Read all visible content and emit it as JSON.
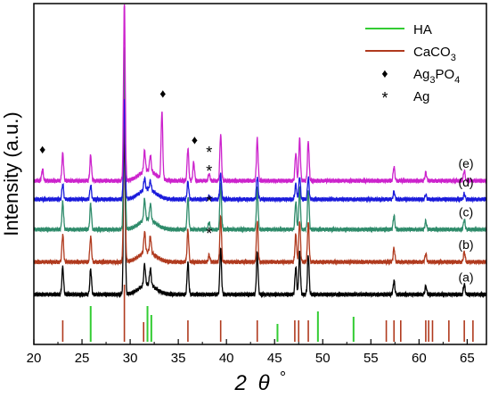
{
  "chart_data": {
    "type": "line",
    "xlabel_main": "2",
    "xlabel_theta": "θ",
    "xlabel_deg": "°",
    "ylabel": "Intensity (a.u.)",
    "xlim": [
      20,
      67
    ],
    "xticks": [
      20,
      25,
      30,
      35,
      40,
      45,
      50,
      55,
      60,
      65
    ],
    "yticks_shown": false,
    "grid": false,
    "legend": {
      "placement": "top-right",
      "items": [
        {
          "label": "HA",
          "color": "#33cc33",
          "marker": "line"
        },
        {
          "label": "CaCO",
          "sub": "3",
          "color": "#b03a1e",
          "marker": "line"
        },
        {
          "label": "Ag",
          "sub": "3",
          "label2": "PO",
          "sub2": "4",
          "color": "#000000",
          "marker": "diamond"
        },
        {
          "label": "Ag",
          "color": "#000000",
          "marker": "star"
        }
      ]
    },
    "peaks": [
      {
        "x": 23.0,
        "w": 0.6
      },
      {
        "x": 25.9,
        "w": 0.55
      },
      {
        "x": 29.4,
        "w": 3.9
      },
      {
        "x": 31.5,
        "w": 0.45
      },
      {
        "x": 32.1,
        "w": 0.35
      },
      {
        "x": 36.0,
        "w": 0.7
      },
      {
        "x": 39.4,
        "w": 1.0
      },
      {
        "x": 43.2,
        "w": 0.9
      },
      {
        "x": 47.2,
        "w": 0.6
      },
      {
        "x": 47.6,
        "w": 0.9
      },
      {
        "x": 48.5,
        "w": 0.85
      },
      {
        "x": 57.4,
        "w": 0.3
      },
      {
        "x": 60.7,
        "w": 0.18
      },
      {
        "x": 64.7,
        "w": 0.22
      }
    ],
    "series": [
      {
        "name": "(a)",
        "color": "#000000",
        "baseline": 0.0,
        "scale": 1.0,
        "extra": []
      },
      {
        "name": "(b)",
        "color": "#b03a1e",
        "baseline": 0.7,
        "scale": 1.0,
        "extra": [
          {
            "x": 38.2,
            "w": 0.15
          }
        ]
      },
      {
        "name": "(c)",
        "color": "#2e8b6a",
        "baseline": 1.4,
        "scale": 1.0,
        "extra": [
          {
            "x": 38.2,
            "w": 0.15
          }
        ]
      },
      {
        "name": "(d)",
        "color": "#1a1adb",
        "baseline": 2.05,
        "scale": 0.55,
        "extra": [
          {
            "x": 38.2,
            "w": 0.12
          }
        ]
      },
      {
        "name": "(e)",
        "color": "#cc22cc",
        "baseline": 2.45,
        "scale": 1.0,
        "extra": [
          {
            "x": 20.9,
            "w": 0.25
          },
          {
            "x": 33.3,
            "w": 1.45
          },
          {
            "x": 36.6,
            "w": 0.4
          },
          {
            "x": 38.2,
            "w": 0.15
          }
        ]
      }
    ],
    "annotations": [
      {
        "symbol": "♦",
        "x": 20.9,
        "series": "(e)"
      },
      {
        "symbol": "♦",
        "x": 33.4,
        "series": "(e)"
      },
      {
        "symbol": "♦",
        "x": 36.7,
        "series": "(e)"
      },
      {
        "symbol": "*",
        "x": 38.2,
        "series": "(e)"
      },
      {
        "symbol": "*",
        "x": 38.2,
        "series": "(d)"
      },
      {
        "symbol": "*",
        "x": 38.2,
        "series": "(c)"
      },
      {
        "symbol": "*",
        "x": 38.2,
        "series": "(b)"
      }
    ],
    "reference_HA": [
      {
        "x": 25.9,
        "h": 1.0
      },
      {
        "x": 31.8,
        "h": 1.0
      },
      {
        "x": 32.2,
        "h": 0.75
      },
      {
        "x": 45.3,
        "h": 0.5
      },
      {
        "x": 49.5,
        "h": 0.85
      },
      {
        "x": 53.2,
        "h": 0.7
      }
    ],
    "reference_CaCO3": [
      {
        "x": 23.0,
        "h": 0.6
      },
      {
        "x": 29.4,
        "h": 1.6
      },
      {
        "x": 31.4,
        "h": 0.55
      },
      {
        "x": 36.0,
        "h": 0.6
      },
      {
        "x": 39.4,
        "h": 0.6
      },
      {
        "x": 43.2,
        "h": 0.6
      },
      {
        "x": 47.1,
        "h": 0.6
      },
      {
        "x": 47.5,
        "h": 0.6
      },
      {
        "x": 48.5,
        "h": 0.6
      },
      {
        "x": 56.6,
        "h": 0.6
      },
      {
        "x": 57.4,
        "h": 0.6
      },
      {
        "x": 58.1,
        "h": 0.6
      },
      {
        "x": 60.7,
        "h": 0.6
      },
      {
        "x": 61.0,
        "h": 0.6
      },
      {
        "x": 61.4,
        "h": 0.6
      },
      {
        "x": 63.1,
        "h": 0.6
      },
      {
        "x": 64.7,
        "h": 0.6
      },
      {
        "x": 65.6,
        "h": 0.6
      }
    ]
  }
}
